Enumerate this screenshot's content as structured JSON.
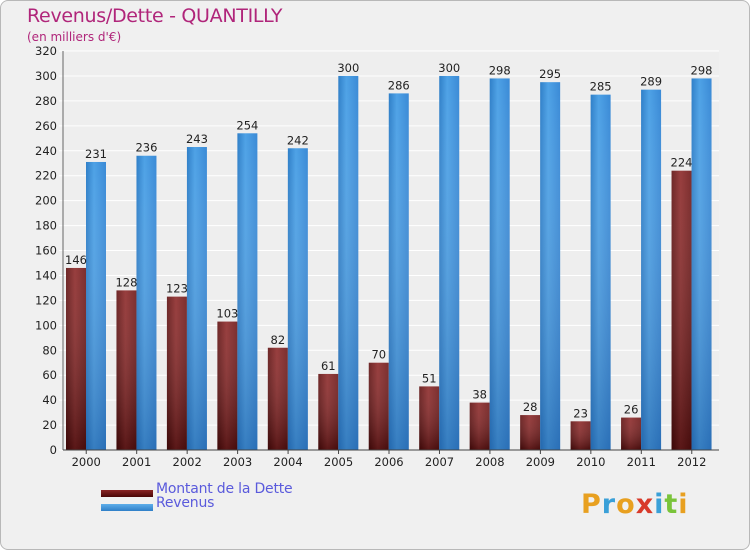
{
  "title": "Revenus/Dette - QUANTILLY",
  "subtitle": "(en milliers d'€)",
  "logo": {
    "letters": [
      "P",
      "r",
      "o",
      "x",
      "i",
      "t",
      "i"
    ],
    "colors": [
      "#e8a020",
      "#3aa0d8",
      "#e8a020",
      "#d83a2a",
      "#3aa0d8",
      "#7ac43a",
      "#e8a020"
    ]
  },
  "colors": {
    "title": "#b0257a",
    "debt": "#7a1a1a",
    "revenue": "#3a8fd8",
    "legend_text": "#5a5adc"
  },
  "chart_data": {
    "type": "bar",
    "title": "Revenus/Dette - QUANTILLY",
    "subtitle": "(en milliers d'€)",
    "categories": [
      "2000",
      "2001",
      "2002",
      "2003",
      "2004",
      "2005",
      "2006",
      "2007",
      "2008",
      "2009",
      "2010",
      "2011",
      "2012"
    ],
    "series": [
      {
        "name": "Montant de la Dette",
        "values": [
          146,
          128,
          123,
          103,
          82,
          61,
          70,
          51,
          38,
          28,
          23,
          26,
          224
        ]
      },
      {
        "name": "Revenus",
        "values": [
          231,
          236,
          243,
          254,
          242,
          300,
          286,
          300,
          298,
          295,
          285,
          289,
          298
        ]
      }
    ],
    "ylim": [
      0,
      320
    ],
    "yticks": [
      0,
      20,
      40,
      60,
      80,
      100,
      120,
      140,
      160,
      180,
      200,
      220,
      240,
      260,
      280,
      300,
      320
    ],
    "grid": true,
    "legend_position": "bottom-left"
  }
}
